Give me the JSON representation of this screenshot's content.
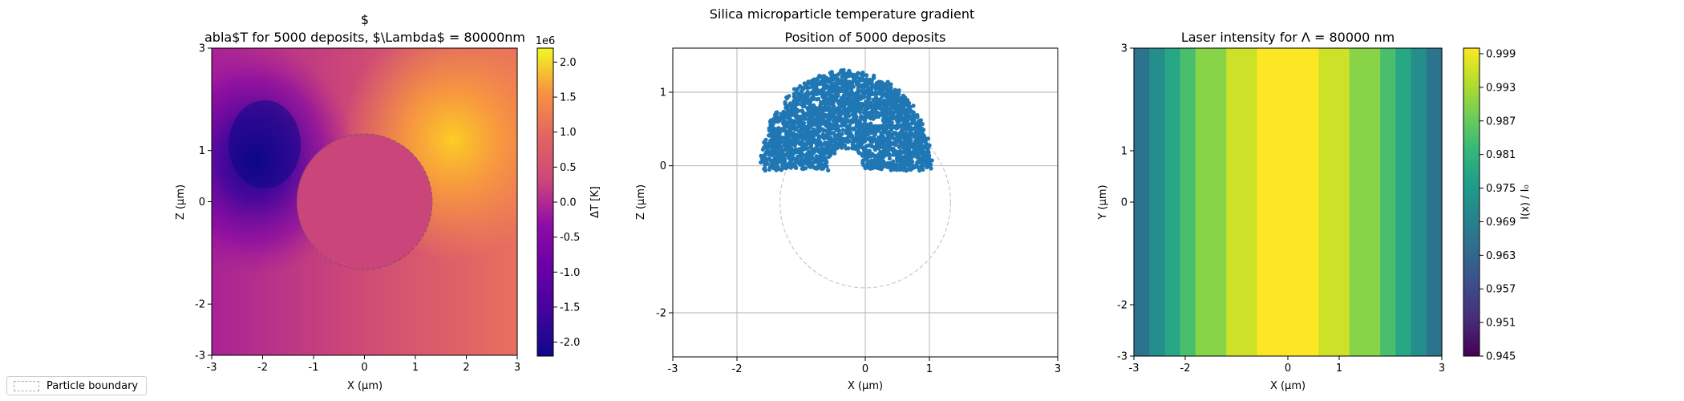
{
  "figure": {
    "suptitle": "Silica microparticle temperature gradient",
    "legend_label": "Particle boundary"
  },
  "chart_data": [
    {
      "type": "heatmap",
      "title_line1": "$",
      "title_line2": "abla$T for 5000 deposits, $\\Lambda$ = 80000nm",
      "xlabel": "X (μm)",
      "ylabel": "Z (μm)",
      "xlim": [
        -3,
        3
      ],
      "ylim": [
        -3,
        3
      ],
      "xticks": [
        "-3",
        "-2",
        "-1",
        "0",
        "1",
        "2",
        "3"
      ],
      "yticks": [
        "3",
        "1",
        "0",
        "-2",
        "-3"
      ],
      "particle_radius": 1.33,
      "colormap": "plasma",
      "colorbar": {
        "label": "ΔT [K]",
        "offset_text": "1e6",
        "range": [
          -2.2,
          2.2
        ],
        "ticks": [
          "2.0",
          "1.5",
          "1.0",
          "0.5",
          "0.0",
          "-0.5",
          "-1.0",
          "-1.5",
          "-2.0"
        ]
      }
    },
    {
      "type": "scatter",
      "title": "Position of 5000 deposits",
      "xlabel": "X (μm)",
      "ylabel": "Z (μm)",
      "xlim": [
        -3,
        3
      ],
      "ylim": [
        -2.6,
        1.6
      ],
      "xticks": [
        "-3",
        "-2",
        "0",
        "1",
        "3"
      ],
      "yticks": [
        "1",
        "0",
        "-2"
      ],
      "n_points": 5000,
      "point_color": "#1f77b4",
      "grid": true,
      "particle_radius": 1.33
    },
    {
      "type": "heatmap",
      "title": "Laser intensity for Λ = 80000 nm",
      "xlabel": "X (μm)",
      "ylabel": "Y (μm)",
      "xlim": [
        -3,
        3
      ],
      "ylim": [
        -3,
        3
      ],
      "xticks": [
        "-3",
        "-2",
        "0",
        "1",
        "3"
      ],
      "yticks": [
        "3",
        "1",
        "0",
        "-2",
        "-3"
      ],
      "colormap": "viridis",
      "intensity_profile": "I(x)/I0 = exp(-(x/15.5)^2)",
      "colorbar": {
        "label": "I(x) / I₀",
        "range": [
          0.945,
          1.0
        ],
        "ticks": [
          "0.999",
          "0.993",
          "0.987",
          "0.981",
          "0.975",
          "0.969",
          "0.963",
          "0.957",
          "0.951",
          "0.945"
        ]
      }
    }
  ]
}
